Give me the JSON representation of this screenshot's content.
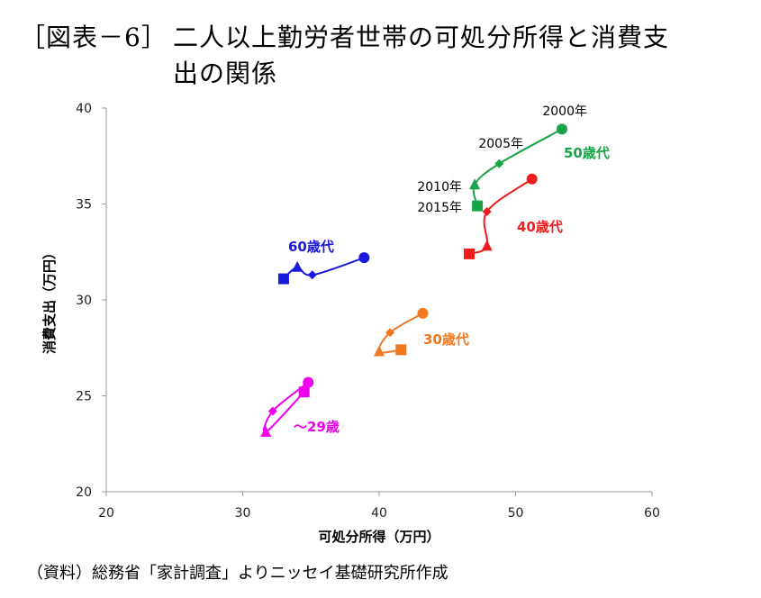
{
  "figure": {
    "number": "［図表－6］",
    "title_line1": "二人以上勤労者世帯の可処分所得と消費支",
    "title_line2": "出の関係",
    "source": "（資料）総務省「家計調査」よりニッセイ基礎研究所作成"
  },
  "chart_data": {
    "type": "scatter",
    "xlabel": "可処分所得（万円）",
    "ylabel": "消費支出（万円）",
    "xlim": [
      20,
      60
    ],
    "ylim": [
      20,
      40
    ],
    "xticks": [
      "20",
      "30",
      "40",
      "50",
      "60"
    ],
    "yticks": [
      "20",
      "25",
      "30",
      "35",
      "40"
    ],
    "grid": false,
    "year_labels": [
      "2000年",
      "2005年",
      "2010年",
      "2015年"
    ],
    "markers_by_year": [
      "circle",
      "diamond",
      "triangle",
      "square"
    ],
    "series": [
      {
        "name": "～29歳",
        "color": "#ee00ee",
        "points": [
          {
            "x": 34.8,
            "y": 25.7
          },
          {
            "x": 32.2,
            "y": 24.2
          },
          {
            "x": 31.7,
            "y": 23.1
          },
          {
            "x": 34.5,
            "y": 25.2
          }
        ]
      },
      {
        "name": "30歳代",
        "color": "#f07820",
        "points": [
          {
            "x": 43.2,
            "y": 29.3
          },
          {
            "x": 40.8,
            "y": 28.3
          },
          {
            "x": 40.0,
            "y": 27.3
          },
          {
            "x": 41.6,
            "y": 27.4
          }
        ]
      },
      {
        "name": "40歳代",
        "color": "#ee1c1c",
        "points": [
          {
            "x": 51.2,
            "y": 36.3
          },
          {
            "x": 47.9,
            "y": 34.6
          },
          {
            "x": 47.9,
            "y": 32.8
          },
          {
            "x": 46.6,
            "y": 32.4
          }
        ]
      },
      {
        "name": "50歳代",
        "color": "#1aa44a",
        "points": [
          {
            "x": 53.4,
            "y": 38.9
          },
          {
            "x": 48.8,
            "y": 37.1
          },
          {
            "x": 47.0,
            "y": 36.0
          },
          {
            "x": 47.2,
            "y": 34.9
          }
        ]
      },
      {
        "name": "60歳代",
        "color": "#1a1adc",
        "points": [
          {
            "x": 38.9,
            "y": 32.2
          },
          {
            "x": 35.1,
            "y": 31.3
          },
          {
            "x": 34.0,
            "y": 31.7
          },
          {
            "x": 33.0,
            "y": 31.1
          }
        ]
      }
    ]
  }
}
